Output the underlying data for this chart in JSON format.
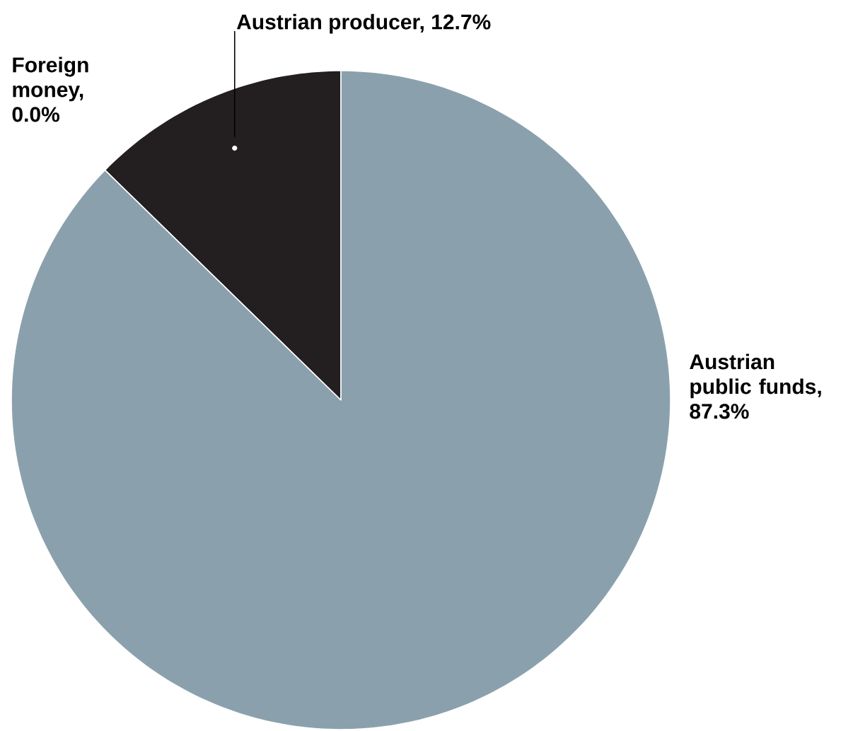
{
  "chart_data": {
    "type": "pie",
    "categories": [
      "Austrian producer, 12.7%",
      "Foreign money, 0.0%",
      "Austrian public funds, 87.3%"
    ],
    "values": [
      12.7,
      0.0,
      87.3
    ],
    "colors": [
      "#231f20",
      "#c0392b",
      "#8aa1ad"
    ]
  }
}
